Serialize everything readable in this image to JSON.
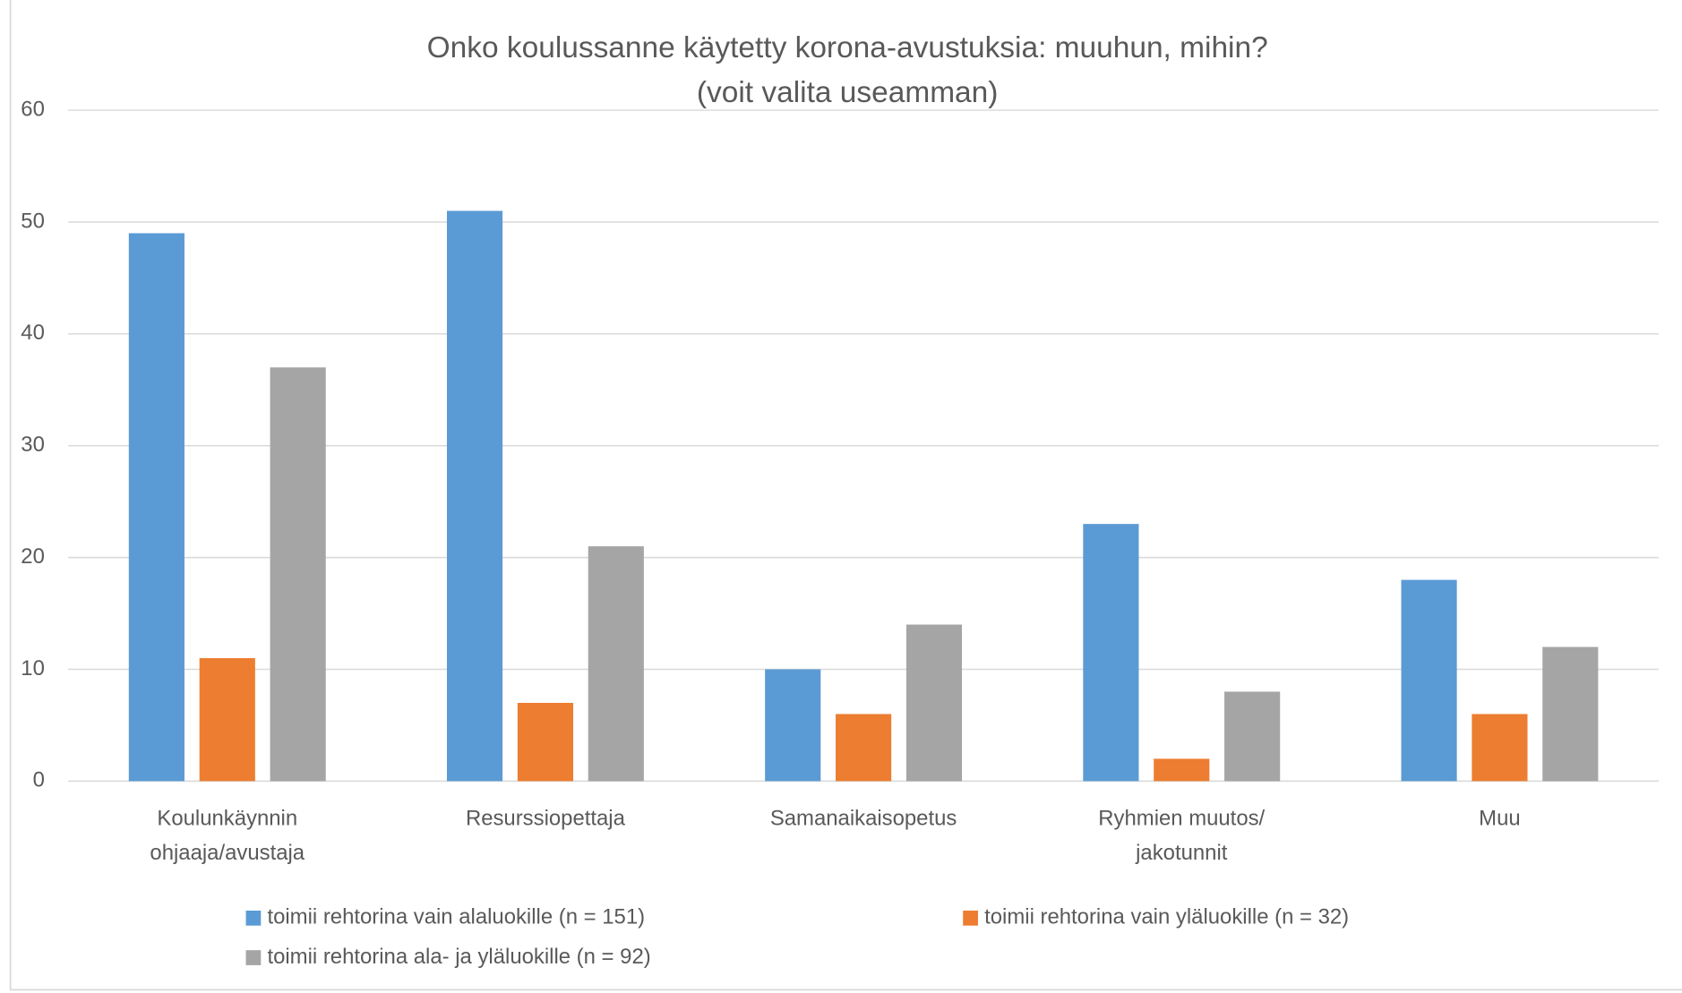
{
  "chart_data": {
    "type": "bar",
    "title": [
      "Onko koulussanne käytetty korona-avustuksia: muuhun, mihin?",
      "(voit valita useamman)"
    ],
    "categories": [
      [
        "Koulunkäynnin",
        "ohjaaja/avustaja"
      ],
      [
        "Resurssiopettaja"
      ],
      [
        "Samanaikaisopetus"
      ],
      [
        "Ryhmien muutos/",
        "jakotunnit"
      ],
      [
        "Muu"
      ]
    ],
    "series": [
      {
        "name": "toimii rehtorina vain alaluokille (n = 151)",
        "color": "#5b9bd5",
        "values": [
          49,
          51,
          10,
          23,
          18
        ]
      },
      {
        "name": "toimii rehtorina vain yläluokille (n = 32)",
        "color": "#ed7d31",
        "values": [
          11,
          7,
          6,
          2,
          6
        ]
      },
      {
        "name": "toimii rehtorina ala- ja yläluokille (n = 92)",
        "color": "#a5a5a5",
        "values": [
          37,
          21,
          14,
          8,
          12
        ]
      }
    ],
    "ylim": [
      0,
      60
    ],
    "yticks": [
      0,
      10,
      20,
      30,
      40,
      50,
      60
    ],
    "grid": true,
    "legend": "bottom"
  }
}
